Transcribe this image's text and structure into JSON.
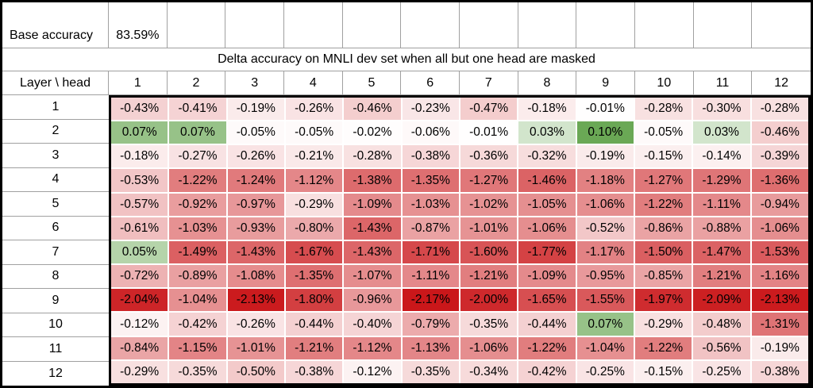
{
  "base": {
    "label": "Base accuracy",
    "value": "83.59%"
  },
  "title": "Delta accuracy on MNLI dev set when all but one head are masked",
  "corner_label": "Layer \\ head",
  "colors": {
    "background": "#FFFFFF",
    "text": "#000000",
    "grid_line": "#A0A0A0",
    "outer_border": "#000000"
  },
  "chart_data": {
    "type": "heatmap",
    "title": "Delta accuracy on MNLI dev set when all but one head are masked",
    "xlabel": "head",
    "ylabel": "Layer",
    "columns": [
      "1",
      "2",
      "3",
      "4",
      "5",
      "6",
      "7",
      "8",
      "9",
      "10",
      "11",
      "12"
    ],
    "rows": [
      "1",
      "2",
      "3",
      "4",
      "5",
      "6",
      "7",
      "8",
      "9",
      "10",
      "11",
      "12"
    ],
    "value_unit": "percent",
    "value_format": "two_decimals_with_percent_sign",
    "values": [
      [
        -0.43,
        -0.41,
        -0.19,
        -0.26,
        -0.46,
        -0.23,
        -0.47,
        -0.18,
        -0.01,
        -0.28,
        -0.3,
        -0.28
      ],
      [
        0.07,
        0.07,
        -0.05,
        -0.05,
        -0.02,
        -0.06,
        -0.01,
        0.03,
        0.1,
        -0.05,
        0.03,
        -0.46
      ],
      [
        -0.18,
        -0.27,
        -0.26,
        -0.21,
        -0.28,
        -0.38,
        -0.36,
        -0.32,
        -0.19,
        -0.15,
        -0.14,
        -0.39
      ],
      [
        -0.53,
        -1.22,
        -1.24,
        -1.12,
        -1.38,
        -1.35,
        -1.27,
        -1.46,
        -1.18,
        -1.27,
        -1.29,
        -1.36
      ],
      [
        -0.57,
        -0.92,
        -0.97,
        -0.29,
        -1.09,
        -1.03,
        -1.02,
        -1.05,
        -1.06,
        -1.22,
        -1.11,
        -0.94
      ],
      [
        -0.61,
        -1.03,
        -0.93,
        -0.8,
        -1.43,
        -0.87,
        -1.01,
        -1.06,
        -0.52,
        -0.86,
        -0.88,
        -1.06
      ],
      [
        0.05,
        -1.49,
        -1.43,
        -1.67,
        -1.43,
        -1.71,
        -1.6,
        -1.77,
        -1.17,
        -1.5,
        -1.47,
        -1.53
      ],
      [
        -0.72,
        -0.89,
        -1.08,
        -1.35,
        -1.07,
        -1.11,
        -1.21,
        -1.09,
        -0.95,
        -0.85,
        -1.21,
        -1.16
      ],
      [
        -2.04,
        -1.04,
        -2.13,
        -1.8,
        -0.96,
        -2.17,
        -2.0,
        -1.65,
        -1.55,
        -1.97,
        -2.09,
        -2.13
      ],
      [
        -0.12,
        -0.42,
        -0.26,
        -0.44,
        -0.4,
        -0.79,
        -0.35,
        -0.44,
        0.07,
        -0.29,
        -0.48,
        -1.31
      ],
      [
        -0.84,
        -1.15,
        -1.01,
        -1.21,
        -1.12,
        -1.13,
        -1.06,
        -1.22,
        -1.04,
        -1.22,
        -0.56,
        -0.19
      ],
      [
        -0.29,
        -0.35,
        -0.5,
        -0.38,
        -0.12,
        -0.35,
        -0.34,
        -0.42,
        -0.25,
        -0.15,
        -0.25,
        -0.38
      ]
    ],
    "color_scale": {
      "min": -2.17,
      "max": 0.1,
      "neutral_color": "#FFFFFF",
      "negative_max_color": "#CA171A",
      "positive_max_color": "#6AA855"
    },
    "grid": true,
    "legend": false
  }
}
